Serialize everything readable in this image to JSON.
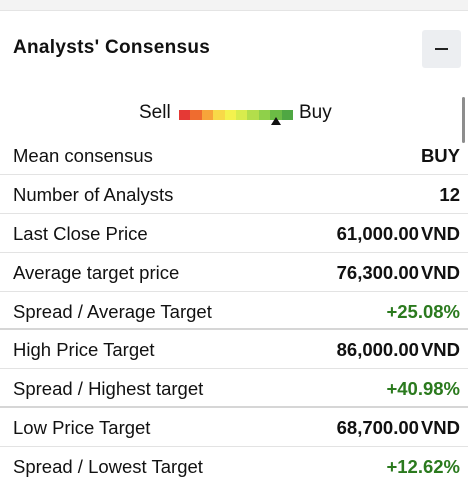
{
  "widget": {
    "title": "Analysts' Consensus",
    "collapse_icon": "minus-icon"
  },
  "gauge": {
    "sell_label": "Sell",
    "buy_label": "Buy",
    "segment_colors": [
      "#e53935",
      "#ef6c2f",
      "#f7a53a",
      "#f8d948",
      "#f4f24e",
      "#d8ec4d",
      "#b3de4b",
      "#8fd04a",
      "#6cbc45",
      "#4fa743"
    ],
    "pointer_level": 0.85
  },
  "rows": [
    {
      "label": "Mean consensus",
      "value": "BUY",
      "unit": "",
      "positive": false
    },
    {
      "label": "Number of Analysts",
      "value": "12",
      "unit": "",
      "positive": false
    },
    {
      "label": "Last Close Price",
      "value": "61,000.00",
      "unit": "VND",
      "positive": false
    },
    {
      "label": "Average target price",
      "value": "76,300.00",
      "unit": "VND",
      "positive": false
    },
    {
      "label": "Spread / Average Target",
      "value": "+25.08%",
      "unit": "",
      "positive": true
    },
    {
      "label": "High Price Target",
      "value": "86,000.00",
      "unit": "VND",
      "positive": false
    },
    {
      "label": "Spread / Highest target",
      "value": "+40.98%",
      "unit": "",
      "positive": true
    },
    {
      "label": "Low Price Target",
      "value": "68,700.00",
      "unit": "VND",
      "positive": false
    },
    {
      "label": "Spread / Lowest Target",
      "value": "+12.62%",
      "unit": "",
      "positive": true
    }
  ]
}
